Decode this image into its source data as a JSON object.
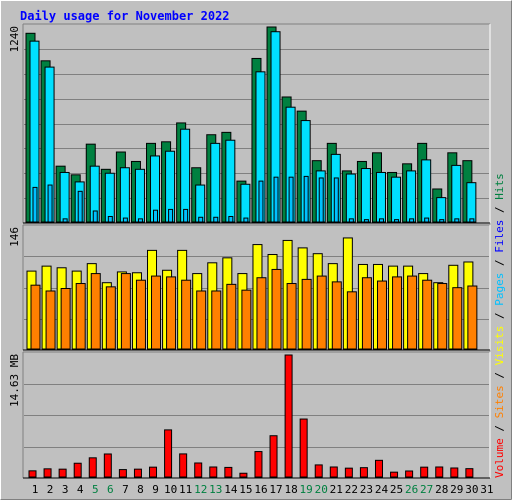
{
  "colors": {
    "background": "#c0c0c0",
    "plot_bg": "#c0c0c0",
    "title": "#0000ff",
    "hits": "#008040",
    "files": "#00e0ff",
    "pages": "#00c0ff",
    "visits": "#ffff00",
    "sites": "#ff8000",
    "volume": "#ff0000",
    "weekend_label": "#008040",
    "weekday_label": "#000000",
    "separator": "#000000"
  },
  "chart_data": {
    "type": "bar",
    "title": "Daily usage for November 2022",
    "days": [
      "1",
      "2",
      "3",
      "4",
      "5",
      "6",
      "7",
      "8",
      "9",
      "10",
      "11",
      "12",
      "13",
      "14",
      "15",
      "16",
      "17",
      "18",
      "19",
      "20",
      "21",
      "22",
      "23",
      "24",
      "25",
      "26",
      "27",
      "28",
      "29",
      "30",
      "31"
    ],
    "weekend_days": [
      "5",
      "6",
      "12",
      "13",
      "19",
      "20",
      "26",
      "27"
    ],
    "panels": [
      {
        "name": "requests",
        "max_label": "1240",
        "ylim": [
          0,
          1240
        ],
        "series": [
          {
            "name": "Hits",
            "values": [
              1200,
              1025,
              355,
              300,
              495,
              335,
              445,
              385,
              500,
              510,
              630,
              345,
              555,
              570,
              260,
              1040,
              1240,
              795,
              705,
              390,
              500,
              325,
              385,
              440,
              315,
              370,
              500,
              210,
              440,
              390,
              null
            ]
          },
          {
            "name": "Files",
            "values": [
              1150,
              985,
              315,
              255,
              355,
              310,
              345,
              335,
              420,
              450,
              590,
              235,
              500,
              520,
              240,
              955,
              1210,
              730,
              645,
              325,
              430,
              305,
              340,
              315,
              285,
              325,
              395,
              155,
              360,
              250,
              null
            ]
          },
          {
            "name": "Pages",
            "values": [
              220,
              235,
              20,
              195,
              70,
              35,
              25,
              20,
              75,
              80,
              80,
              30,
              30,
              35,
              25,
              260,
              285,
              285,
              290,
              280,
              280,
              20,
              15,
              20,
              15,
              20,
              25,
              15,
              20,
              20,
              null
            ]
          }
        ]
      },
      {
        "name": "visitors",
        "max_label": "146",
        "ylim": [
          0,
          146
        ],
        "series": [
          {
            "name": "Visits",
            "values": [
              94,
              100,
              98,
              94,
              103,
              80,
              93,
              92,
              119,
              95,
              119,
              91,
              104,
              110,
              91,
              126,
              114,
              131,
              122,
              115,
              103,
              134,
              102,
              102,
              100,
              100,
              91,
              80,
              101,
              105,
              null
            ]
          },
          {
            "name": "Sites",
            "values": [
              77,
              70,
              73,
              79,
              91,
              75,
              91,
              83,
              88,
              87,
              83,
              70,
              70,
              78,
              71,
              86,
              96,
              79,
              84,
              88,
              81,
              69,
              86,
              82,
              87,
              88,
              83,
              79,
              74,
              76,
              null
            ]
          }
        ]
      },
      {
        "name": "volume",
        "max_label": "14.63 MB",
        "ylim": [
          0,
          14.63
        ],
        "series": [
          {
            "name": "Volume",
            "values": [
              0.74,
              0.98,
              0.94,
              1.65,
              2.3,
              2.76,
              0.89,
              0.94,
              1.18,
              5.65,
              2.77,
              1.68,
              1.2,
              1.15,
              0.45,
              3.05,
              4.95,
              14.63,
              6.95,
              1.45,
              1.2,
              1.06,
              1.12,
              2.0,
              0.58,
              0.72,
              1.18,
              1.2,
              1.08,
              1.0,
              null
            ]
          }
        ]
      }
    ],
    "legend": [
      {
        "label": "Volume",
        "color": "#ff0000"
      },
      {
        "label": "Sites",
        "color": "#ff8000"
      },
      {
        "label": "Visits",
        "color": "#ffff00"
      },
      {
        "label": "Pages",
        "color": "#00c0ff"
      },
      {
        "label": "Files",
        "color": "#0000ff"
      },
      {
        "label": "Hits",
        "color": "#008040"
      }
    ],
    "legend_separator": "/",
    "grid": true,
    "legend_position": "right"
  }
}
